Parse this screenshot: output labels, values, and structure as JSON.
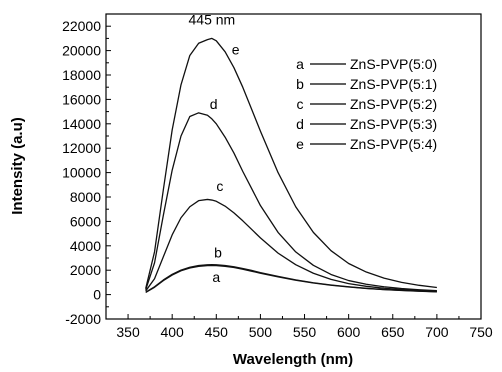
{
  "chart_data": {
    "type": "line",
    "title": "",
    "xlabel": "Wavelength (nm)",
    "ylabel": "Intensity (a.u)",
    "xlim": [
      325,
      750
    ],
    "ylim": [
      -2000,
      23000
    ],
    "xticks": [
      350,
      400,
      450,
      500,
      550,
      600,
      650,
      700,
      750
    ],
    "yticks": [
      -2000,
      0,
      2000,
      4000,
      6000,
      8000,
      10000,
      12000,
      14000,
      16000,
      18000,
      20000,
      22000
    ],
    "grid": false,
    "legend_position": "top-right",
    "annotation": {
      "text": "445 nm",
      "x": 445,
      "y": 21800
    },
    "x": [
      370,
      380,
      390,
      400,
      410,
      420,
      430,
      440,
      445,
      450,
      460,
      470,
      480,
      490,
      500,
      520,
      540,
      560,
      580,
      600,
      620,
      640,
      660,
      680,
      700
    ],
    "series": [
      {
        "key": "a",
        "name": "ZnS-PVP(5:0)",
        "values": [
          180,
          600,
          1150,
          1600,
          1950,
          2180,
          2320,
          2380,
          2390,
          2380,
          2320,
          2220,
          2080,
          1920,
          1750,
          1450,
          1180,
          950,
          770,
          620,
          500,
          410,
          340,
          280,
          230
        ]
      },
      {
        "key": "b",
        "name": "ZnS-PVP(5:1)",
        "values": [
          200,
          640,
          1200,
          1660,
          2010,
          2240,
          2380,
          2440,
          2450,
          2440,
          2380,
          2280,
          2140,
          1980,
          1800,
          1490,
          1210,
          970,
          790,
          640,
          515,
          420,
          350,
          290,
          240
        ]
      },
      {
        "key": "c",
        "name": "ZnS-PVP(5:2)",
        "values": [
          300,
          1300,
          3100,
          4900,
          6300,
          7200,
          7700,
          7800,
          7750,
          7650,
          7250,
          6700,
          6050,
          5350,
          4650,
          3400,
          2450,
          1750,
          1250,
          900,
          680,
          520,
          420,
          340,
          280
        ]
      },
      {
        "key": "d",
        "name": "ZnS-PVP(5:3)",
        "values": [
          400,
          2600,
          6500,
          10200,
          13000,
          14600,
          14900,
          14700,
          14400,
          14000,
          12900,
          11600,
          10100,
          8700,
          7300,
          5100,
          3500,
          2400,
          1650,
          1150,
          850,
          640,
          500,
          400,
          320
        ]
      },
      {
        "key": "e",
        "name": "ZnS-PVP(5:4)",
        "values": [
          500,
          3500,
          8600,
          13500,
          17200,
          19600,
          20600,
          20900,
          21000,
          20800,
          19900,
          18600,
          17000,
          15200,
          13400,
          10000,
          7200,
          5100,
          3600,
          2550,
          1850,
          1350,
          1000,
          760,
          580
        ]
      }
    ],
    "curve_labels": [
      {
        "text": "a",
        "x": 450,
        "y": 1050
      },
      {
        "text": "b",
        "x": 452,
        "y": 3050
      },
      {
        "text": "c",
        "x": 454,
        "y": 8500
      },
      {
        "text": "d",
        "x": 447,
        "y": 15200
      },
      {
        "text": "e",
        "x": 472,
        "y": 19700
      }
    ]
  }
}
